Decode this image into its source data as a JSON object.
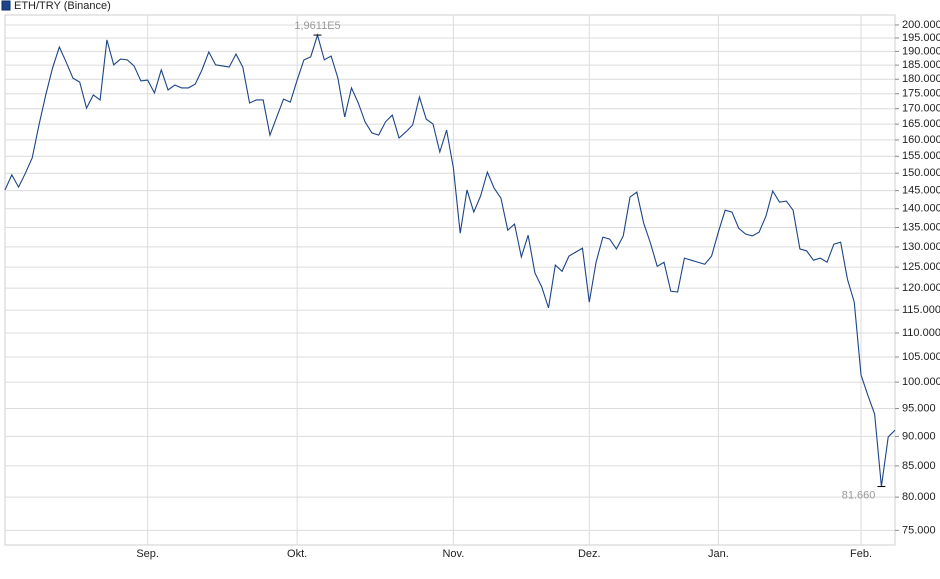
{
  "chart_data": {
    "type": "line",
    "log_scale": true,
    "grid": true,
    "categories": [
      null,
      null,
      null,
      null,
      null,
      null,
      null,
      null,
      null,
      null,
      null,
      null,
      null,
      null,
      null,
      null,
      null,
      null,
      null,
      null,
      null,
      "Sep.",
      null,
      null,
      null,
      null,
      null,
      null,
      null,
      null,
      null,
      null,
      null,
      null,
      null,
      null,
      null,
      null,
      null,
      null,
      null,
      null,
      null,
      "Okt.",
      null,
      null,
      null,
      null,
      null,
      null,
      null,
      null,
      null,
      null,
      null,
      null,
      null,
      null,
      null,
      null,
      null,
      null,
      null,
      null,
      null,
      null,
      "Nov.",
      null,
      null,
      null,
      null,
      null,
      null,
      null,
      null,
      null,
      null,
      null,
      null,
      null,
      null,
      null,
      null,
      null,
      null,
      null,
      "Dez.",
      null,
      null,
      null,
      null,
      null,
      null,
      null,
      null,
      null,
      null,
      null,
      null,
      null,
      null,
      null,
      null,
      null,
      null,
      "Jan.",
      null,
      null,
      null,
      null,
      null,
      null,
      null,
      null,
      null,
      null,
      null,
      null,
      null,
      null,
      null,
      null,
      null,
      null,
      null,
      null,
      "Feb.",
      null,
      null,
      null,
      null,
      null
    ],
    "series": [
      {
        "name": "ETH/TRY (Binance)",
        "color": "#1c4587",
        "values": [
          145200,
          149500,
          146000,
          150000,
          154500,
          164700,
          174600,
          184000,
          191600,
          186100,
          180400,
          179000,
          170200,
          174600,
          172900,
          194300,
          185100,
          187200,
          186900,
          184700,
          179400,
          179700,
          175300,
          183300,
          176300,
          178000,
          177000,
          177000,
          178300,
          183300,
          189800,
          185100,
          184700,
          184300,
          189000,
          184300,
          171900,
          172900,
          172900,
          161500,
          167300,
          173200,
          172200,
          179700,
          186900,
          188000,
          196110,
          186900,
          188300,
          180400,
          167300,
          177000,
          171900,
          165700,
          162200,
          161500,
          165700,
          167900,
          160600,
          162500,
          164700,
          173900,
          166600,
          165000,
          156300,
          163100,
          151500,
          133500,
          145200,
          139100,
          143500,
          150300,
          145700,
          142900,
          134300,
          135900,
          127500,
          133000,
          123600,
          120300,
          115500,
          125500,
          124000,
          127700,
          128700,
          129700,
          116800,
          126200,
          132500,
          132000,
          129500,
          132800,
          143200,
          144600,
          136200,
          131000,
          125200,
          126200,
          119300,
          119100,
          127200,
          126700,
          126200,
          125700,
          127700,
          133800,
          139600,
          139100,
          134800,
          133300,
          132800,
          133800,
          138000,
          144900,
          141800,
          142100,
          139600,
          129500,
          129000,
          126700,
          127200,
          126200,
          130700,
          131200,
          122100,
          116800,
          101400,
          97500,
          94000,
          81660,
          89900,
          91100
        ],
        "value_labels": [
          null,
          null,
          null,
          null,
          null,
          null,
          null,
          null,
          null,
          null,
          null,
          null,
          null,
          null,
          null,
          null,
          null,
          null,
          null,
          null,
          null,
          null,
          null,
          null,
          null,
          null,
          null,
          null,
          null,
          null,
          null,
          null,
          null,
          null,
          null,
          null,
          null,
          null,
          null,
          null,
          null,
          null,
          null,
          null,
          null,
          null,
          "1,9611E5",
          null,
          null,
          null,
          null,
          null,
          null,
          null,
          null,
          null,
          null,
          null,
          null,
          null,
          null,
          null,
          null,
          null,
          null,
          null,
          null,
          null,
          null,
          null,
          null,
          null,
          null,
          null,
          null,
          null,
          null,
          null,
          null,
          null,
          null,
          null,
          null,
          null,
          null,
          null,
          null,
          null,
          null,
          null,
          null,
          null,
          null,
          null,
          null,
          null,
          null,
          null,
          null,
          null,
          null,
          null,
          null,
          null,
          null,
          null,
          null,
          null,
          null,
          null,
          null,
          null,
          null,
          null,
          null,
          null,
          null,
          null,
          null,
          null,
          null,
          null,
          null,
          null,
          null,
          null,
          null,
          null,
          null,
          "81.660",
          null,
          null
        ]
      }
    ],
    "ylim": [
      72900,
      203900
    ],
    "yticks": [
      {
        "value": 75000,
        "label": "75.000"
      },
      {
        "value": 80000,
        "label": "80.000"
      },
      {
        "value": 85000,
        "label": "85.000"
      },
      {
        "value": 90000,
        "label": "90.000"
      },
      {
        "value": 95000,
        "label": "95.000"
      },
      {
        "value": 100000,
        "label": "100.000"
      },
      {
        "value": 105000,
        "label": "105.000"
      },
      {
        "value": 110000,
        "label": "110.000"
      },
      {
        "value": 115000,
        "label": "115.000"
      },
      {
        "value": 120000,
        "label": "120.000"
      },
      {
        "value": 125000,
        "label": "125.000"
      },
      {
        "value": 130000,
        "label": "130.000"
      },
      {
        "value": 135000,
        "label": "135.000"
      },
      {
        "value": 140000,
        "label": "140.000"
      },
      {
        "value": 145000,
        "label": "145.000"
      },
      {
        "value": 150000,
        "label": "150.000"
      },
      {
        "value": 155000,
        "label": "155.000"
      },
      {
        "value": 160000,
        "label": "160.000"
      },
      {
        "value": 165000,
        "label": "165.000"
      },
      {
        "value": 170000,
        "label": "170.000"
      },
      {
        "value": 175000,
        "label": "175.000"
      },
      {
        "value": 180000,
        "label": "180.000"
      },
      {
        "value": 185000,
        "label": "185.000"
      },
      {
        "value": 190000,
        "label": "190.000"
      },
      {
        "value": 195000,
        "label": "195.000"
      },
      {
        "value": 200000,
        "label": "200.000"
      }
    ]
  }
}
